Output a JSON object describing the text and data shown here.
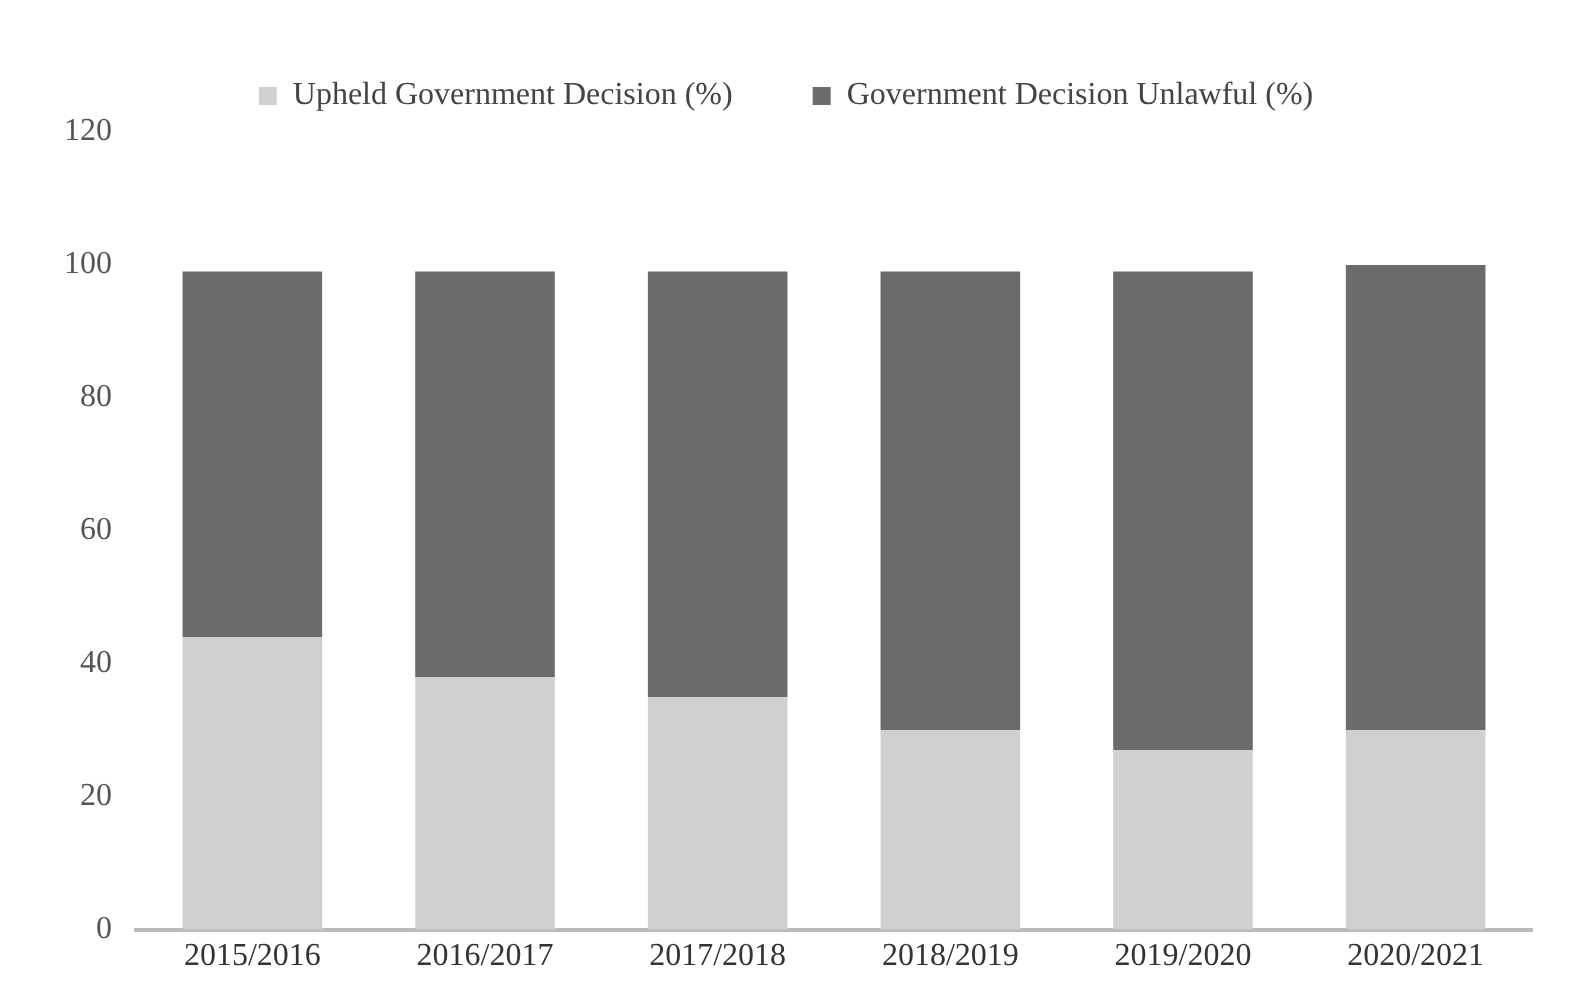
{
  "chart_data": {
    "type": "bar",
    "stacked": true,
    "categories": [
      "2015/2016",
      "2016/2017",
      "2017/2018",
      "2018/2019",
      "2019/2020",
      "2020/2021"
    ],
    "series": [
      {
        "name": "Upheld Government Decision (%)",
        "color": "#d0d0d2",
        "values": [
          44,
          38,
          35,
          30,
          27,
          30
        ]
      },
      {
        "name": "Government Decision Unlawful (%)",
        "color": "#6b6b6d",
        "values": [
          55,
          61,
          64,
          69,
          72,
          70
        ]
      }
    ],
    "ylim": [
      0,
      120
    ],
    "yticks": [
      0,
      20,
      40,
      60,
      80,
      100,
      120
    ],
    "grid": false,
    "legend": "top"
  }
}
